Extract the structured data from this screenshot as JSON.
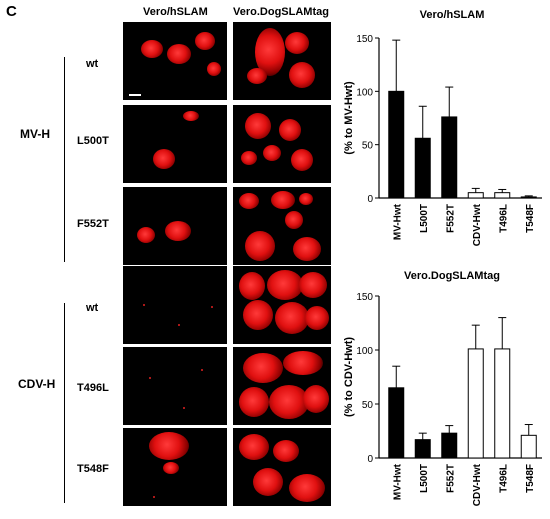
{
  "panel_letter": "C",
  "columns": [
    "Vero/hSLAM",
    "Vero.DogSLAMtag"
  ],
  "groups": [
    {
      "label": "MV-H",
      "rows": [
        "wt",
        "L500T",
        "F552T"
      ]
    },
    {
      "label": "CDV-H",
      "rows": [
        "wt",
        "T496L",
        "T548F"
      ]
    }
  ],
  "colors": {
    "mv_bar": "#000000",
    "cdv_bar": "#ffffff",
    "cell_fluor": "#e01010",
    "background": "#000000"
  },
  "chart_data": [
    {
      "type": "bar",
      "title": "Vero/hSLAM",
      "ylabel": "(% to MV-Hwt)",
      "categories": [
        "MV-Hwt",
        "L500T",
        "F552T",
        "CDV-Hwt",
        "T496L",
        "T548F"
      ],
      "values": [
        100,
        56,
        76,
        5,
        5,
        1
      ],
      "errors": [
        48,
        30,
        28,
        4,
        3,
        1
      ],
      "bar_fill": [
        "#000000",
        "#000000",
        "#000000",
        "#ffffff",
        "#ffffff",
        "#000000"
      ],
      "ylim": [
        0,
        150
      ],
      "yticks": [
        "0",
        "50",
        "100",
        "150"
      ],
      "grid": false
    },
    {
      "type": "bar",
      "title": "Vero.DogSLAMtag",
      "ylabel": "(% to CDV-Hwt)",
      "categories": [
        "MV-Hwt",
        "L500T",
        "F552T",
        "CDV-Hwt",
        "T496L",
        "T548F"
      ],
      "values": [
        65,
        17,
        23,
        101,
        101,
        21
      ],
      "errors": [
        20,
        6,
        7,
        22,
        29,
        10
      ],
      "bar_fill": [
        "#000000",
        "#000000",
        "#000000",
        "#ffffff",
        "#ffffff",
        "#ffffff"
      ],
      "ylim": [
        0,
        150
      ],
      "yticks": [
        "0",
        "50",
        "100",
        "150"
      ],
      "grid": false
    }
  ]
}
